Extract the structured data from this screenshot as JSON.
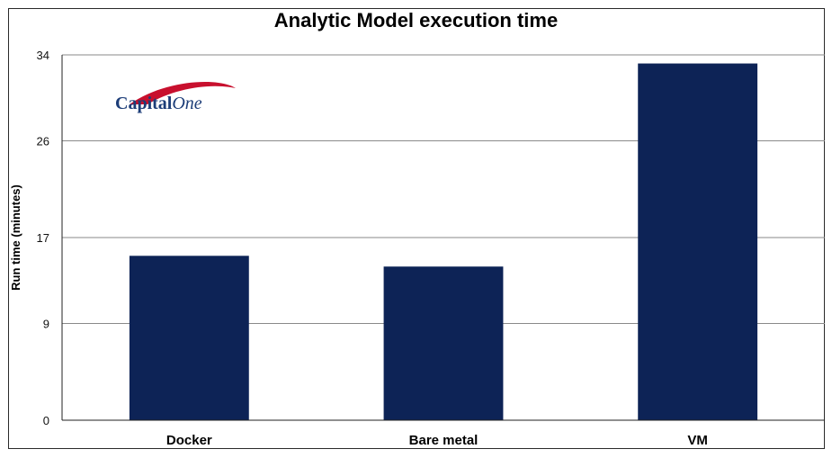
{
  "chart_data": {
    "type": "bar",
    "title": "Analytic Model execution time",
    "ylabel": "Run time (minutes)",
    "xlabel": "",
    "categories": [
      "Docker",
      "Bare metal",
      "VM"
    ],
    "values": [
      15.3,
      14.3,
      33.2
    ],
    "yticks": [
      0,
      9,
      17,
      26,
      34
    ],
    "ylim": [
      0,
      34
    ],
    "grid": true,
    "bar_color": "#0d2356"
  },
  "logo": {
    "text_main": "Capital",
    "text_one": "One",
    "swoosh_color": "#c8102e",
    "text_color": "#1c3d78"
  }
}
